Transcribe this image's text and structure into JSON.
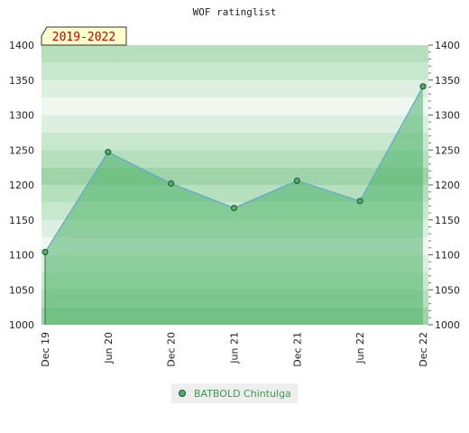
{
  "chart_data": {
    "type": "area",
    "title": "WOF ratinglist",
    "period_label": "2019-2022",
    "categories": [
      "Dec 19",
      "Jun 20",
      "Dec 20",
      "Jun 21",
      "Dec 21",
      "Jun 22",
      "Dec 22"
    ],
    "series": [
      {
        "name": "BATBOLD Chintulga",
        "values": [
          1104,
          1247,
          1202,
          1167,
          1206,
          1177,
          1341
        ]
      }
    ],
    "ylim": [
      1000,
      1400
    ],
    "yticks": [
      1000,
      1050,
      1100,
      1150,
      1200,
      1250,
      1300,
      1350,
      1400
    ],
    "y_axis_both_sides": true,
    "grid": true,
    "legend_position": "bottom",
    "colors": {
      "line": "#5fa8d6",
      "fill": "#4db36a",
      "marker": "#4caf6a",
      "marker_stroke": "#1f4f2c",
      "text": "#3a9a52"
    }
  }
}
